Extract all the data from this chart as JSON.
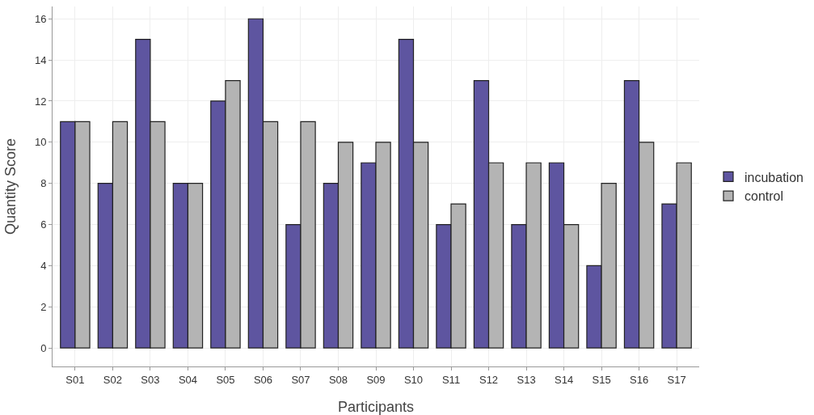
{
  "chart_data": {
    "type": "bar",
    "xlabel": "Participants",
    "ylabel": "Quantity Score",
    "categories": [
      "S01",
      "S02",
      "S03",
      "S04",
      "S05",
      "S06",
      "S07",
      "S08",
      "S09",
      "S10",
      "S11",
      "S12",
      "S13",
      "S14",
      "S15",
      "S16",
      "S17"
    ],
    "series": [
      {
        "name": "incubation",
        "color": "#5e55a0",
        "values": [
          11,
          8,
          15,
          8,
          12,
          16,
          6,
          8,
          9,
          15,
          6,
          13,
          6,
          9,
          4,
          13,
          7
        ]
      },
      {
        "name": "control",
        "color": "#b4b4b4",
        "values": [
          11,
          11,
          11,
          8,
          13,
          11,
          11,
          10,
          10,
          10,
          7,
          9,
          9,
          6,
          8,
          10,
          9
        ]
      }
    ],
    "ylim": [
      -0.9,
      16.6
    ],
    "yticks": [
      0,
      2,
      4,
      6,
      8,
      10,
      12,
      14,
      16
    ],
    "grid": true,
    "legend": "right"
  }
}
